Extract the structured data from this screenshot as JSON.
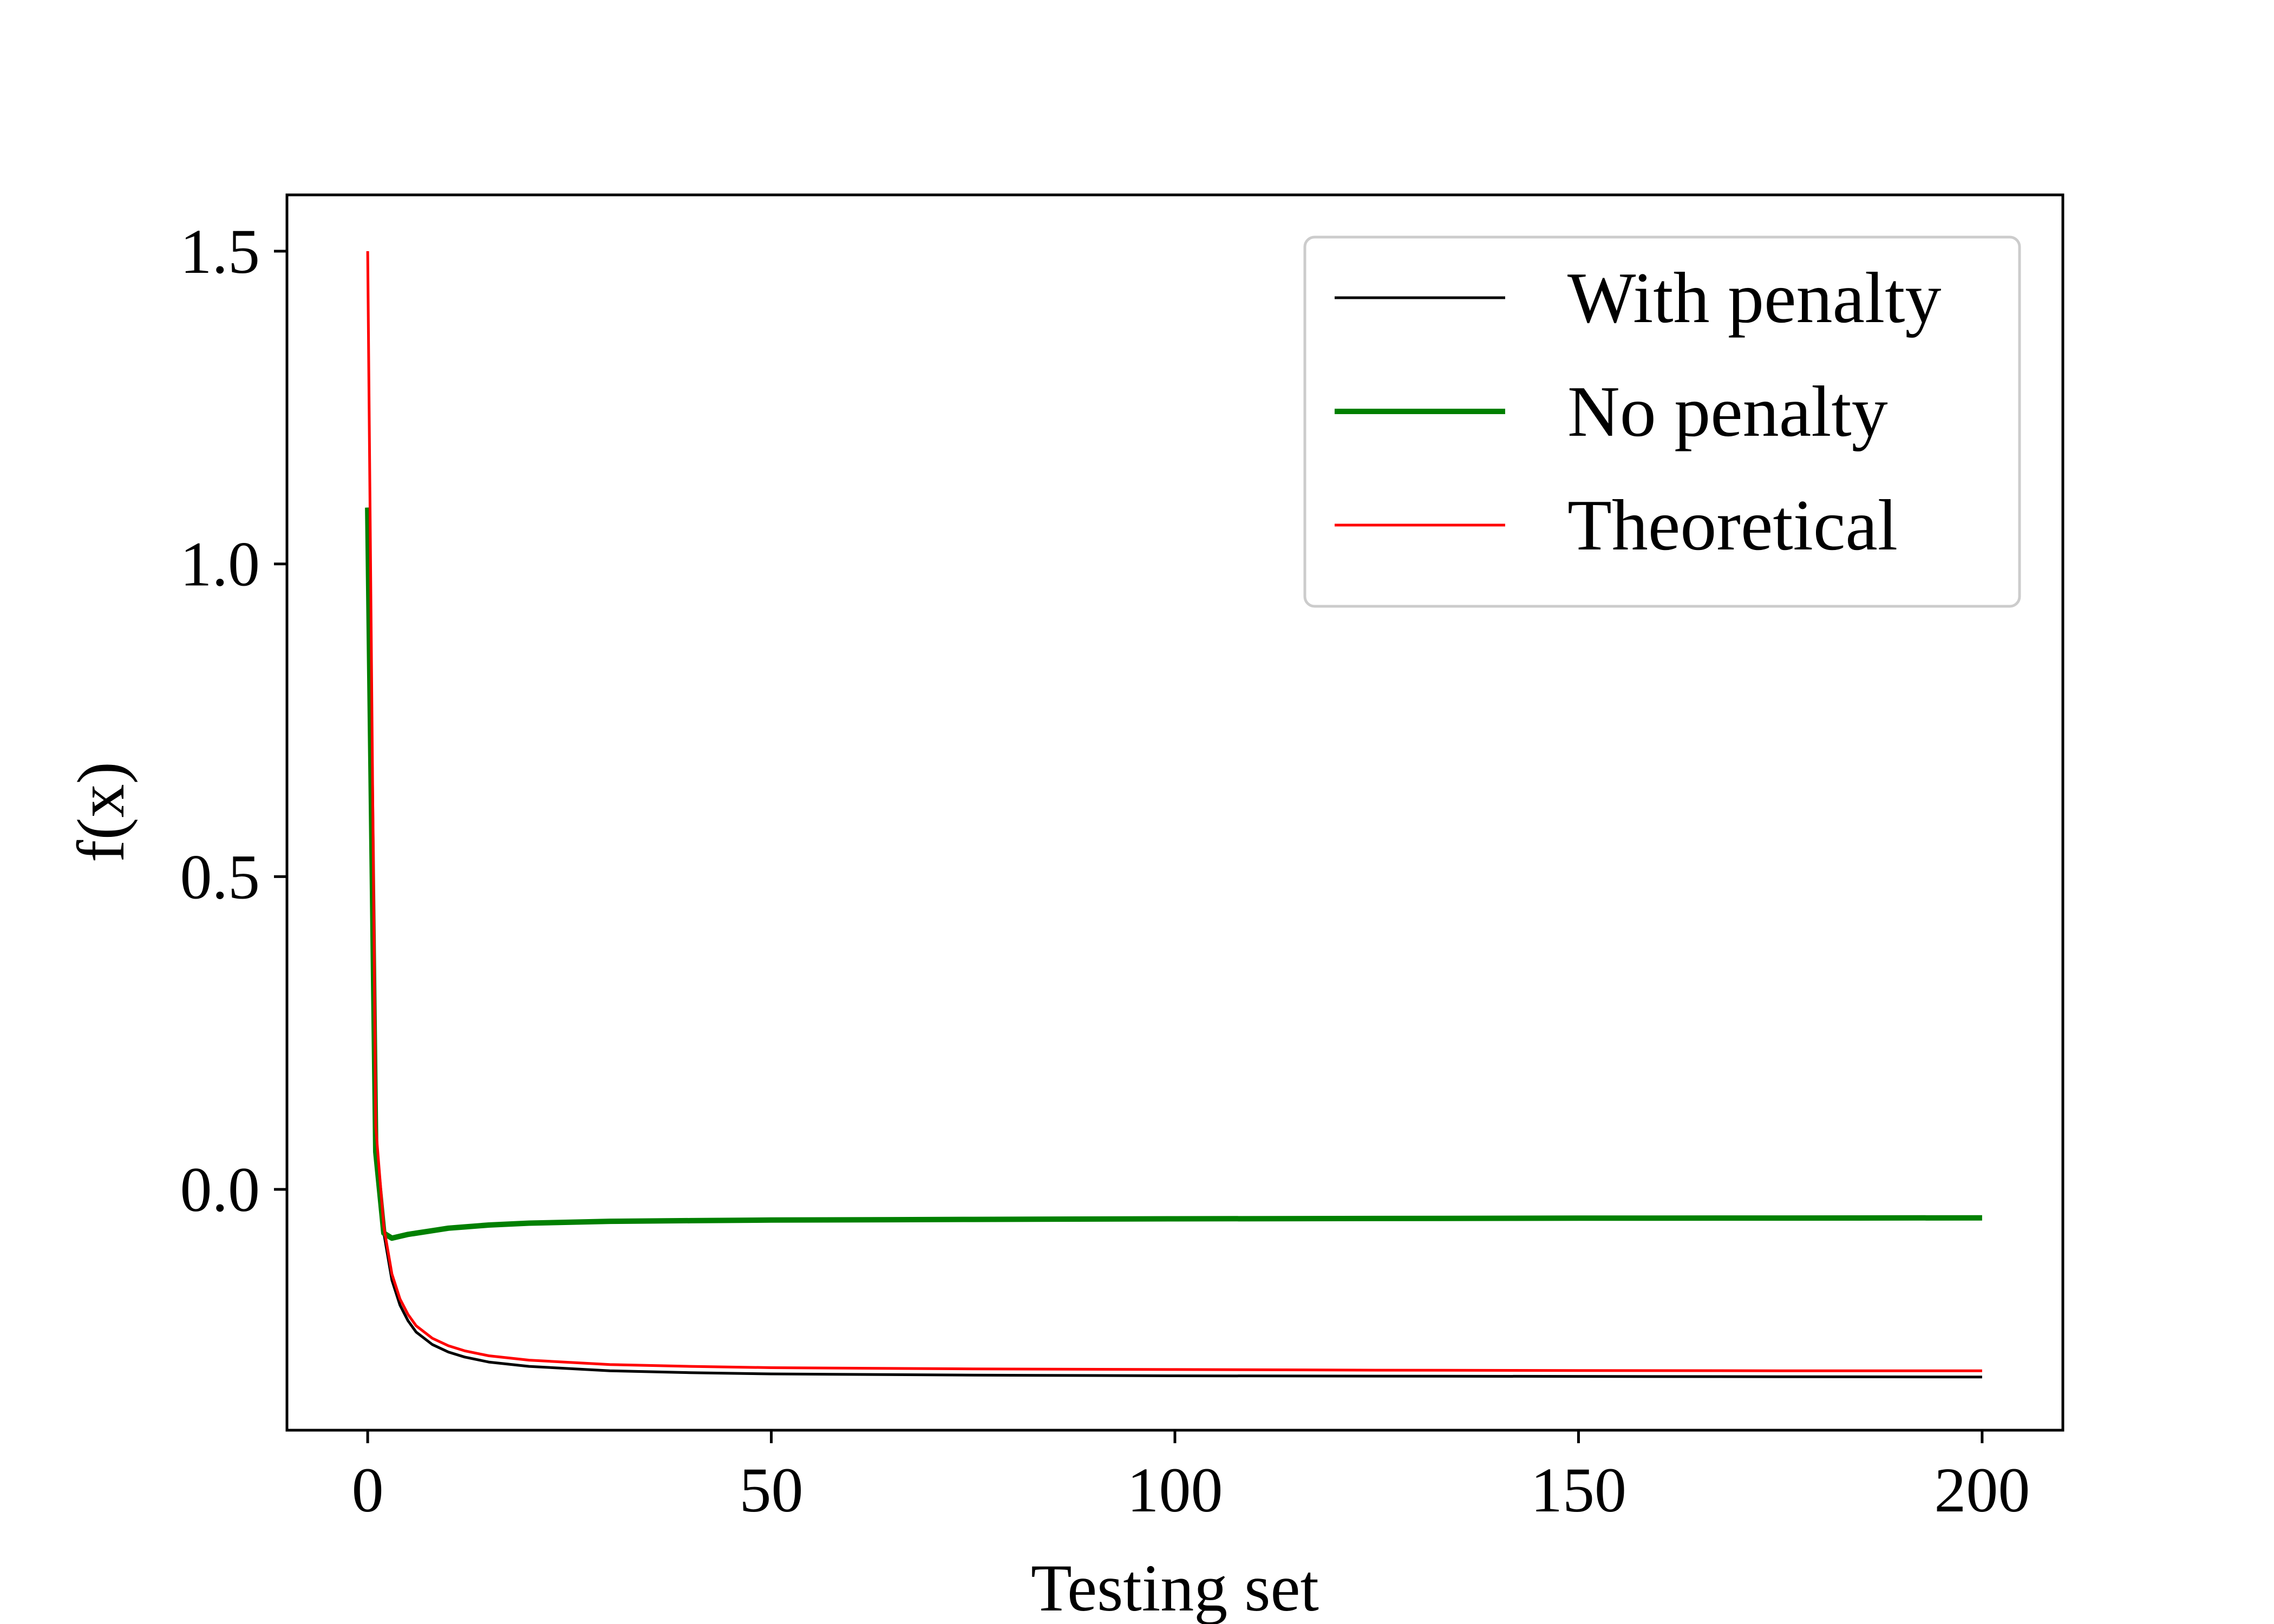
{
  "chart_data": {
    "type": "line",
    "title": "",
    "xlabel": "Testing set",
    "ylabel": "f(x)",
    "xlim": [
      -10,
      210
    ],
    "ylim": [
      -0.385,
      1.59
    ],
    "xticks": [
      0,
      50,
      100,
      150,
      200
    ],
    "xtick_labels": [
      "0",
      "50",
      "100",
      "150",
      "200"
    ],
    "yticks": [
      0.0,
      0.5,
      1.0,
      1.5
    ],
    "ytick_labels": [
      "0.0",
      "0.5",
      "1.0",
      "1.5"
    ],
    "grid": false,
    "legend_position": "top-right",
    "x": [
      0,
      1,
      2,
      3,
      4,
      5,
      6,
      8,
      10,
      12,
      15,
      20,
      30,
      40,
      50,
      75,
      100,
      125,
      150,
      175,
      200
    ],
    "series": [
      {
        "name": "With penalty",
        "color": "#000000",
        "values": [
          1.09,
          0.07,
          -0.07,
          -0.145,
          -0.185,
          -0.21,
          -0.228,
          -0.248,
          -0.26,
          -0.268,
          -0.276,
          -0.283,
          -0.29,
          -0.293,
          -0.295,
          -0.297,
          -0.298,
          -0.2985,
          -0.299,
          -0.2995,
          -0.3
        ]
      },
      {
        "name": "No penalty",
        "color": "#008000",
        "values": [
          1.09,
          0.06,
          -0.07,
          -0.078,
          -0.075,
          -0.072,
          -0.07,
          -0.066,
          -0.062,
          -0.06,
          -0.057,
          -0.054,
          -0.051,
          -0.05,
          -0.049,
          -0.048,
          -0.047,
          -0.0465,
          -0.046,
          -0.0458,
          -0.0455
        ]
      },
      {
        "name": "Theoretical",
        "color": "#ff0000",
        "values": [
          1.5,
          0.1,
          -0.06,
          -0.135,
          -0.175,
          -0.2,
          -0.218,
          -0.238,
          -0.25,
          -0.258,
          -0.266,
          -0.273,
          -0.28,
          -0.283,
          -0.285,
          -0.287,
          -0.288,
          -0.289,
          -0.2895,
          -0.29,
          -0.29
        ]
      }
    ]
  }
}
